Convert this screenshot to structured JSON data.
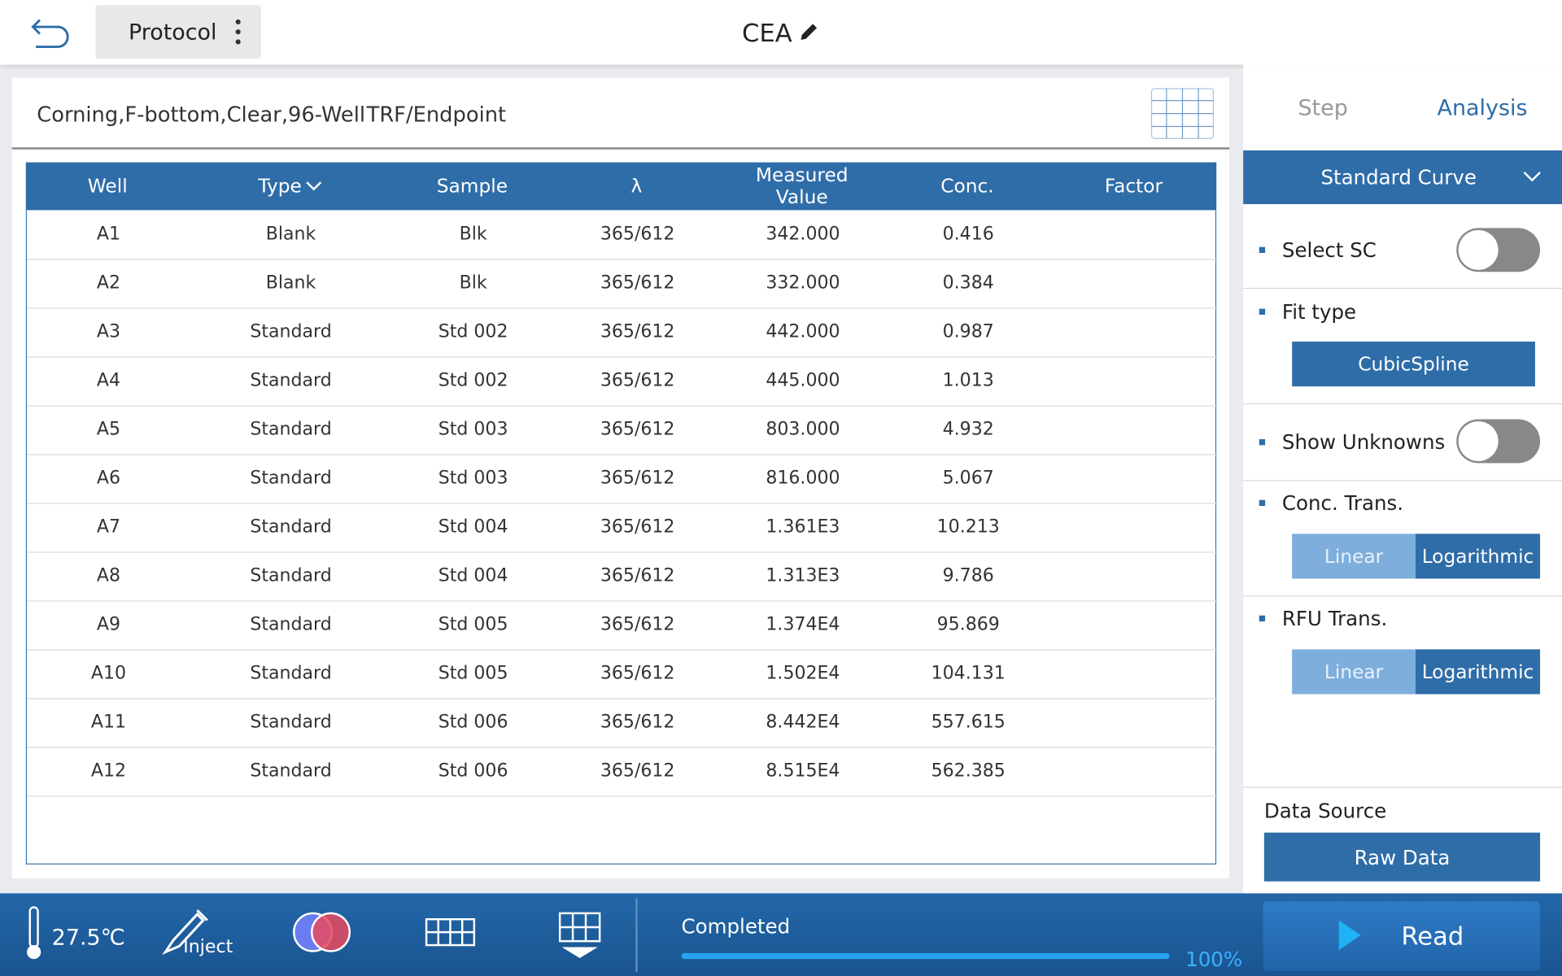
{
  "header": {
    "menu_button": "Protocol",
    "title": "CEA"
  },
  "plate": {
    "plate_type": "Corning,F-bottom,Clear,96-Well",
    "read_mode": "TRF/Endpoint"
  },
  "table": {
    "columns": [
      "Well",
      "Type",
      "Sample",
      "λ",
      "Measured Value",
      "Conc.",
      "Factor"
    ],
    "rows": [
      [
        "A1",
        "Blank",
        "Blk",
        "365/612",
        "342.000",
        "0.416",
        ""
      ],
      [
        "A2",
        "Blank",
        "Blk",
        "365/612",
        "332.000",
        "0.384",
        ""
      ],
      [
        "A3",
        "Standard",
        "Std 002",
        "365/612",
        "442.000",
        "0.987",
        ""
      ],
      [
        "A4",
        "Standard",
        "Std 002",
        "365/612",
        "445.000",
        "1.013",
        ""
      ],
      [
        "A5",
        "Standard",
        "Std 003",
        "365/612",
        "803.000",
        "4.932",
        ""
      ],
      [
        "A6",
        "Standard",
        "Std 003",
        "365/612",
        "816.000",
        "5.067",
        ""
      ],
      [
        "A7",
        "Standard",
        "Std 004",
        "365/612",
        "1.361E3",
        "10.213",
        ""
      ],
      [
        "A8",
        "Standard",
        "Std 004",
        "365/612",
        "1.313E3",
        "9.786",
        ""
      ],
      [
        "A9",
        "Standard",
        "Std 005",
        "365/612",
        "1.374E4",
        "95.869",
        ""
      ],
      [
        "A10",
        "Standard",
        "Std 005",
        "365/612",
        "1.502E4",
        "104.131",
        ""
      ],
      [
        "A11",
        "Standard",
        "Std 006",
        "365/612",
        "8.442E4",
        "557.615",
        ""
      ],
      [
        "A12",
        "Standard",
        "Std 006",
        "365/612",
        "8.515E4",
        "562.385",
        ""
      ]
    ]
  },
  "side_panel": {
    "tabs": [
      "Step",
      "Analysis"
    ],
    "section": "Standard Curve",
    "select_sc": "Select SC",
    "fit_type": "Fit type",
    "fit_value": "CubicSpline",
    "show_unknowns": "Show Unknowns",
    "conc_trans": "Conc. Trans.",
    "rfu_trans": "RFU Trans.",
    "linear": "Linear",
    "logarithmic": "Logarithmic",
    "data_source": "Data Source",
    "data_source_value": "Raw Data"
  },
  "status_bar": {
    "temperature": "27.5℃",
    "inject": "Inject",
    "status": "Completed",
    "progress": "100%",
    "read": "Read"
  }
}
